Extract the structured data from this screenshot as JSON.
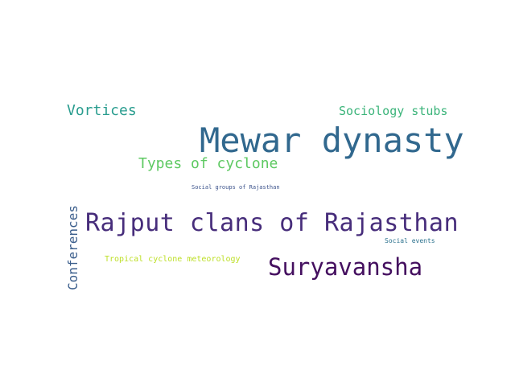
{
  "words": [
    {
      "text": "Mewar dynasty",
      "color": "#31688e"
    },
    {
      "text": "Rajput clans of Rajasthan",
      "color": "#472d7b"
    },
    {
      "text": "Suryavansha",
      "color": "#440f5f"
    },
    {
      "text": "Types of cyclone",
      "color": "#5ec962"
    },
    {
      "text": "Vortices",
      "color": "#2a9d8f"
    },
    {
      "text": "Sociology stubs",
      "color": "#3bb47a"
    },
    {
      "text": "Conferences",
      "color": "#3b5e8c"
    },
    {
      "text": "Tropical cyclone meteorology",
      "color": "#bddf26"
    },
    {
      "text": "Social groups of Rajasthan",
      "color": "#3b528b"
    },
    {
      "text": "Social events",
      "color": "#2c728e"
    }
  ]
}
